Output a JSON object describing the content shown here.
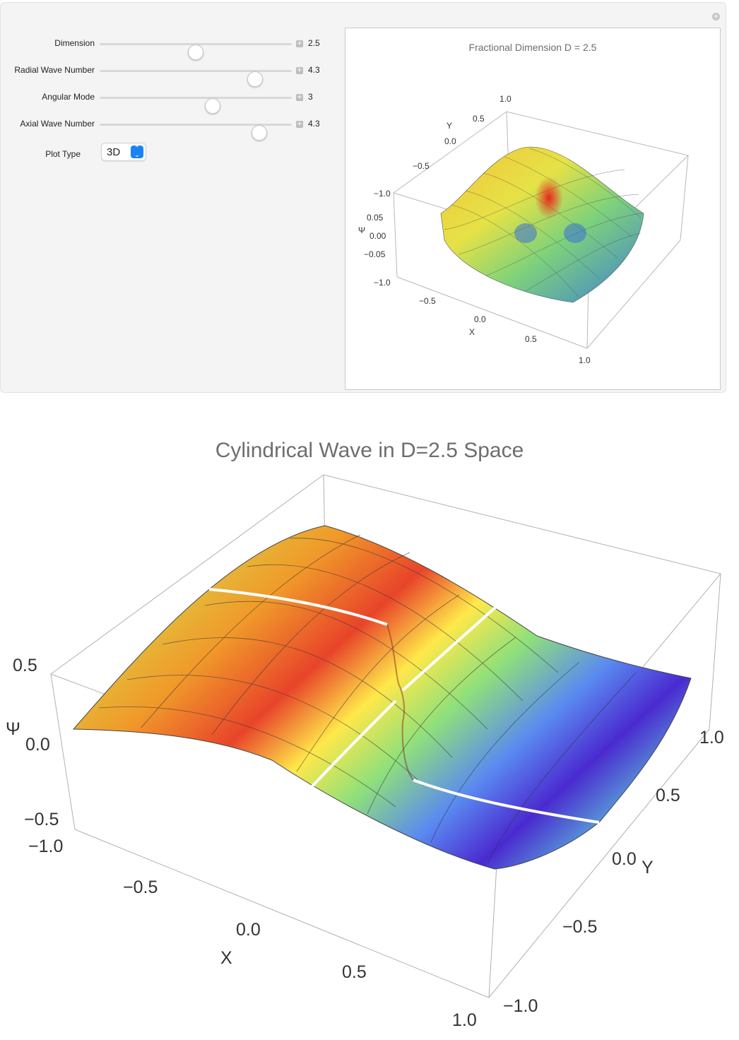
{
  "controls": {
    "sliders": [
      {
        "label": "Dimension",
        "value": "2.5",
        "fraction": 0.5
      },
      {
        "label": "Radial Wave Number",
        "value": "4.3",
        "fraction": 0.81
      },
      {
        "label": "Angular Mode",
        "value": "3",
        "fraction": 0.59
      },
      {
        "label": "Axial Wave Number",
        "value": "4.3",
        "fraction": 0.83
      }
    ],
    "plot_type": {
      "label": "Plot Type",
      "selected": "3D"
    }
  },
  "small_plot": {
    "title": "Fractional Dimension D = 2.5",
    "x_label": "X",
    "y_label": "Y",
    "z_label": "Ψ",
    "x_ticks": [
      "−1.0",
      "−0.5",
      "0.0",
      "0.5",
      "1.0"
    ],
    "y_ticks": [
      "−1.0",
      "−0.5",
      "0.0",
      "0.5",
      "1.0"
    ],
    "z_ticks": [
      "0.05",
      "0.00",
      "−0.05"
    ]
  },
  "big_plot": {
    "title": "Cylindrical Wave in D=2.5 Space",
    "x_label": "X",
    "y_label": "Y",
    "z_label": "Ψ",
    "x_ticks": [
      "−1.0",
      "−0.5",
      "0.0",
      "0.5",
      "1.0"
    ],
    "y_ticks": [
      "−1.0",
      "−0.5",
      "0.0",
      "0.5",
      "1.0"
    ],
    "z_ticks": [
      "0.5",
      "0.0",
      "−0.5"
    ]
  },
  "colors": {
    "accent": "#1a82f7",
    "surface_hot": "#e8261b",
    "surface_cold": "#4a1ab8"
  }
}
